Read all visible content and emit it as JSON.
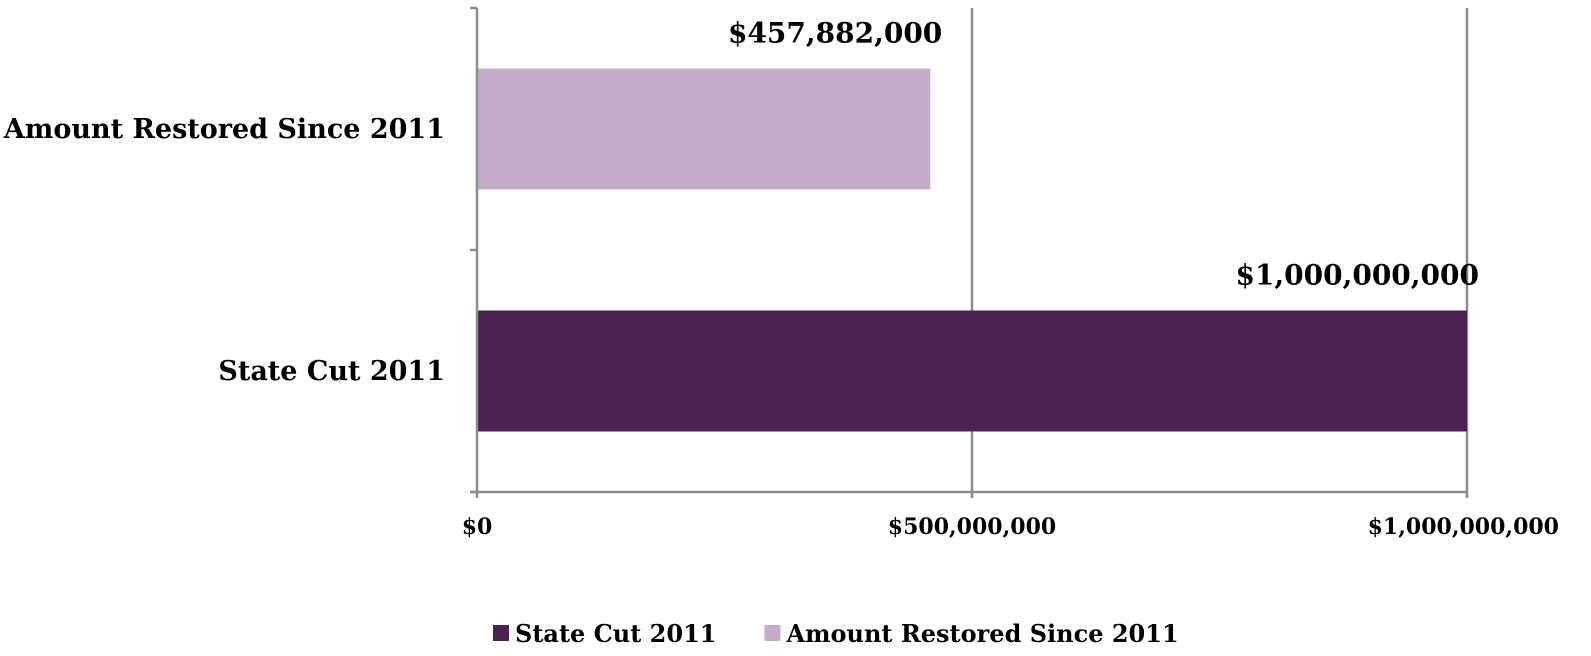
{
  "chart_data": {
    "type": "bar",
    "orientation": "horizontal",
    "categories": [
      "Amount Restored Since 2011",
      "State Cut 2011"
    ],
    "series": [
      {
        "name": "State Cut 2011",
        "color": "#4a2250",
        "values": [
          null,
          1000000000
        ],
        "data_labels": [
          null,
          "$1,000,000,000"
        ]
      },
      {
        "name": "Amount Restored Since 2011",
        "color": "#c3adcb",
        "values": [
          457882000,
          null
        ],
        "data_labels": [
          "$457,882,000",
          null
        ]
      }
    ],
    "xlim": [
      0,
      1000000000
    ],
    "xticks": [
      0,
      500000000,
      1000000000
    ],
    "xtick_labels": [
      "$0",
      "$500,000,000",
      "$1,000,000,000"
    ],
    "grid": true,
    "legend_position": "bottom",
    "gridline_color": "#8c8c8c"
  }
}
